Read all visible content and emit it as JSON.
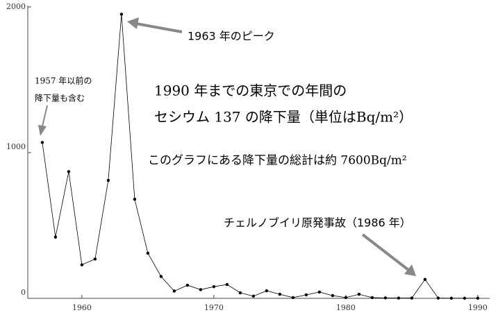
{
  "chart_data": {
    "type": "line",
    "title": "1990 年までの東京での年間の",
    "subtitle": "セシウム 137 の降下量（単位はBq/m²）",
    "annotations": [
      "1963 年のピーク",
      "1957 年以前の",
      "降下量も含む",
      "このグラフにある降下量の総計は約 7600Bq/m²",
      "チェルノブイリ原発事故（1986 年）"
    ],
    "x": [
      1957,
      1958,
      1959,
      1960,
      1961,
      1962,
      1963,
      1964,
      1965,
      1966,
      1967,
      1968,
      1969,
      1970,
      1971,
      1972,
      1973,
      1974,
      1975,
      1976,
      1977,
      1978,
      1979,
      1980,
      1981,
      1982,
      1983,
      1984,
      1985,
      1986,
      1987,
      1988,
      1989,
      1990
    ],
    "values": [
      1070,
      420,
      870,
      230,
      270,
      810,
      1950,
      680,
      310,
      150,
      50,
      90,
      60,
      80,
      95,
      38,
      15,
      52,
      28,
      5,
      24,
      43,
      19,
      5,
      28,
      5,
      3,
      2,
      2,
      130,
      2,
      1,
      1,
      1
    ],
    "color": "#000000",
    "xlim": [
      1955.9,
      1990.9
    ],
    "xticks": [
      1960,
      1970,
      1980,
      1990
    ],
    "ylim": [
      0,
      2000
    ],
    "yticks": [
      0,
      1000,
      2000
    ],
    "grid": false
  }
}
